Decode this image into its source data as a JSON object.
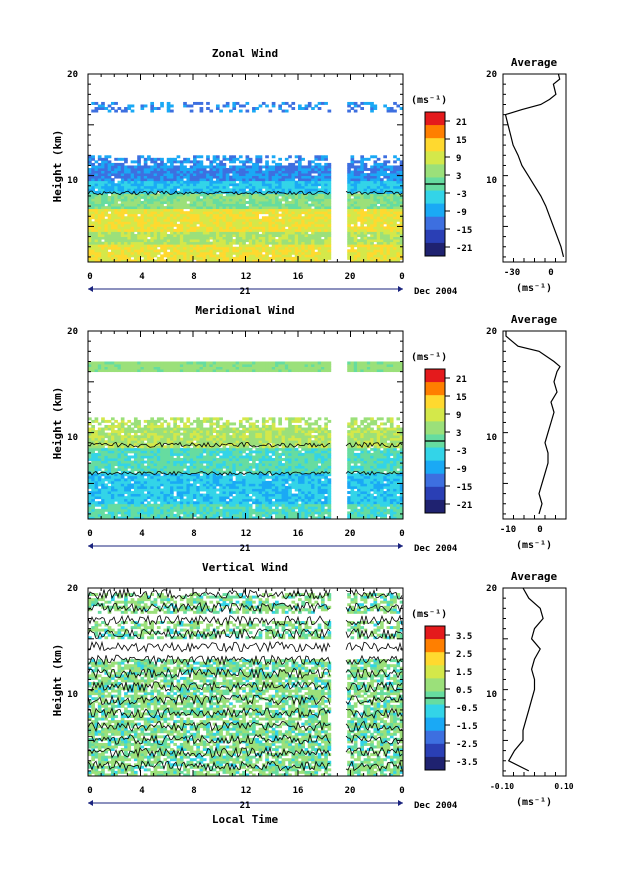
{
  "figure": {
    "xlabel_bottom": "Local Time",
    "date_label": "Dec 2004",
    "day_label": "21"
  },
  "chart_data": [
    {
      "type": "heatmap",
      "title": "Zonal Wind",
      "ylabel": "Height (km)",
      "ylim": [
        1.5,
        20
      ],
      "yticks": [
        "10",
        "20"
      ],
      "xticks": [
        "0",
        "4",
        "8",
        "12",
        "16",
        "20",
        "0"
      ],
      "xlim": [
        0,
        24
      ],
      "colorbar": {
        "unit": "(ms⁻¹)",
        "ticks": [
          "21",
          "15",
          "9",
          "3",
          "-3",
          "-9",
          "-15",
          "-21"
        ],
        "range": [
          -24,
          24
        ]
      },
      "data_gap_hours": [
        18.5,
        19.6
      ],
      "colors": [
        "#e41a1c",
        "#ff7f00",
        "#ffd92f",
        "#d4e84a",
        "#9be07a",
        "#66dca0",
        "#33d4e8",
        "#1aa9f5",
        "#3d6fe0",
        "#2a3fb5",
        "#1f2270"
      ]
    },
    {
      "type": "heatmap",
      "title": "Meridional Wind",
      "ylabel": "Height (km)",
      "ylim": [
        1.5,
        20
      ],
      "yticks": [
        "10",
        "20"
      ],
      "xticks": [
        "0",
        "4",
        "8",
        "12",
        "16",
        "20",
        "0"
      ],
      "xlim": [
        0,
        24
      ],
      "colorbar": {
        "unit": "(ms⁻¹)",
        "ticks": [
          "21",
          "15",
          "9",
          "3",
          "-3",
          "-9",
          "-15",
          "-21"
        ],
        "range": [
          -24,
          24
        ]
      },
      "data_gap_hours": [
        18.5,
        19.6
      ]
    },
    {
      "type": "heatmap",
      "title": "Vertical Wind",
      "ylabel": "Height (km)",
      "ylim": [
        1.5,
        20
      ],
      "yticks": [
        "10",
        "20"
      ],
      "xticks": [
        "0",
        "4",
        "8",
        "12",
        "16",
        "20",
        "0"
      ],
      "xlim": [
        0,
        24
      ],
      "colorbar": {
        "unit": "(ms⁻¹)",
        "ticks": [
          "3.5",
          "2.5",
          "1.5",
          "0.5",
          "-0.5",
          "-1.5",
          "-2.5",
          "-3.5"
        ],
        "range": [
          -4,
          4
        ]
      },
      "data_gap_hours": [
        18.5,
        19.6
      ]
    },
    {
      "type": "line",
      "title": "Average",
      "xlabel": "(ms⁻¹)",
      "xticks": [
        "-30",
        "0"
      ],
      "xlim": [
        -40,
        10
      ],
      "yticks": [
        "10",
        "20"
      ],
      "ylim": [
        1.5,
        20
      ],
      "profile": [
        [
          2,
          8
        ],
        [
          3,
          6
        ],
        [
          4,
          3
        ],
        [
          5,
          0
        ],
        [
          6,
          -3
        ],
        [
          7,
          -6
        ],
        [
          8,
          -10
        ],
        [
          9,
          -15
        ],
        [
          10,
          -20
        ],
        [
          11,
          -25
        ],
        [
          12,
          -28
        ],
        [
          13,
          -32
        ],
        [
          14,
          -34
        ],
        [
          15,
          -36
        ],
        [
          16,
          -38
        ],
        [
          16.5,
          -25
        ],
        [
          17,
          -10
        ],
        [
          17.5,
          -3
        ],
        [
          18,
          2
        ],
        [
          19,
          0
        ],
        [
          19.5,
          5
        ],
        [
          20,
          4
        ]
      ]
    },
    {
      "type": "line",
      "title": "Average",
      "xlabel": "(ms⁻¹)",
      "xticks": [
        "-10",
        "0"
      ],
      "xlim": [
        -13,
        8
      ],
      "yticks": [
        "10",
        "20"
      ],
      "ylim": [
        1.5,
        20
      ],
      "profile": [
        [
          2,
          -1
        ],
        [
          3,
          0
        ],
        [
          4,
          -1
        ],
        [
          5,
          0
        ],
        [
          6,
          1
        ],
        [
          7,
          2
        ],
        [
          8,
          2
        ],
        [
          9,
          1
        ],
        [
          10,
          2
        ],
        [
          11,
          3
        ],
        [
          12,
          4
        ],
        [
          13,
          3
        ],
        [
          14,
          5
        ],
        [
          15,
          4
        ],
        [
          16,
          5
        ],
        [
          16.5,
          6
        ],
        [
          17,
          4
        ],
        [
          18,
          -1
        ],
        [
          18.5,
          -8
        ],
        [
          19,
          -10
        ],
        [
          19.5,
          -12
        ],
        [
          20,
          -12
        ]
      ]
    },
    {
      "type": "line",
      "title": "Average",
      "xlabel": "(ms⁻¹)",
      "xticks": [
        "-0.10",
        "0.10"
      ],
      "xlim": [
        -0.11,
        0.11
      ],
      "yticks": [
        "10",
        "20"
      ],
      "ylim": [
        1.5,
        20
      ],
      "profile": [
        [
          2,
          -0.02
        ],
        [
          3,
          -0.09
        ],
        [
          4,
          -0.07
        ],
        [
          5,
          -0.04
        ],
        [
          6,
          -0.04
        ],
        [
          7,
          -0.03
        ],
        [
          8,
          -0.02
        ],
        [
          9,
          -0.01
        ],
        [
          10,
          0.0
        ],
        [
          11,
          0.0
        ],
        [
          12,
          -0.01
        ],
        [
          13,
          0.0
        ],
        [
          14,
          0.02
        ],
        [
          15,
          -0.01
        ],
        [
          16,
          0.0
        ],
        [
          17,
          0.03
        ],
        [
          18,
          0.02
        ],
        [
          19,
          -0.02
        ],
        [
          20,
          -0.04
        ]
      ]
    }
  ]
}
